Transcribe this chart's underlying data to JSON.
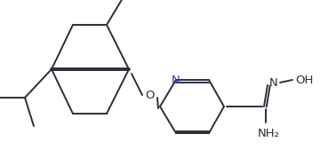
{
  "background": "#ffffff",
  "line_color": "#2d2d3a",
  "line_width": 1.4,
  "font_size": 8.5,
  "figsize": [
    3.6,
    1.87
  ],
  "dpi": 100,
  "xlim": [
    0,
    360
  ],
  "ylim": [
    0,
    187
  ]
}
